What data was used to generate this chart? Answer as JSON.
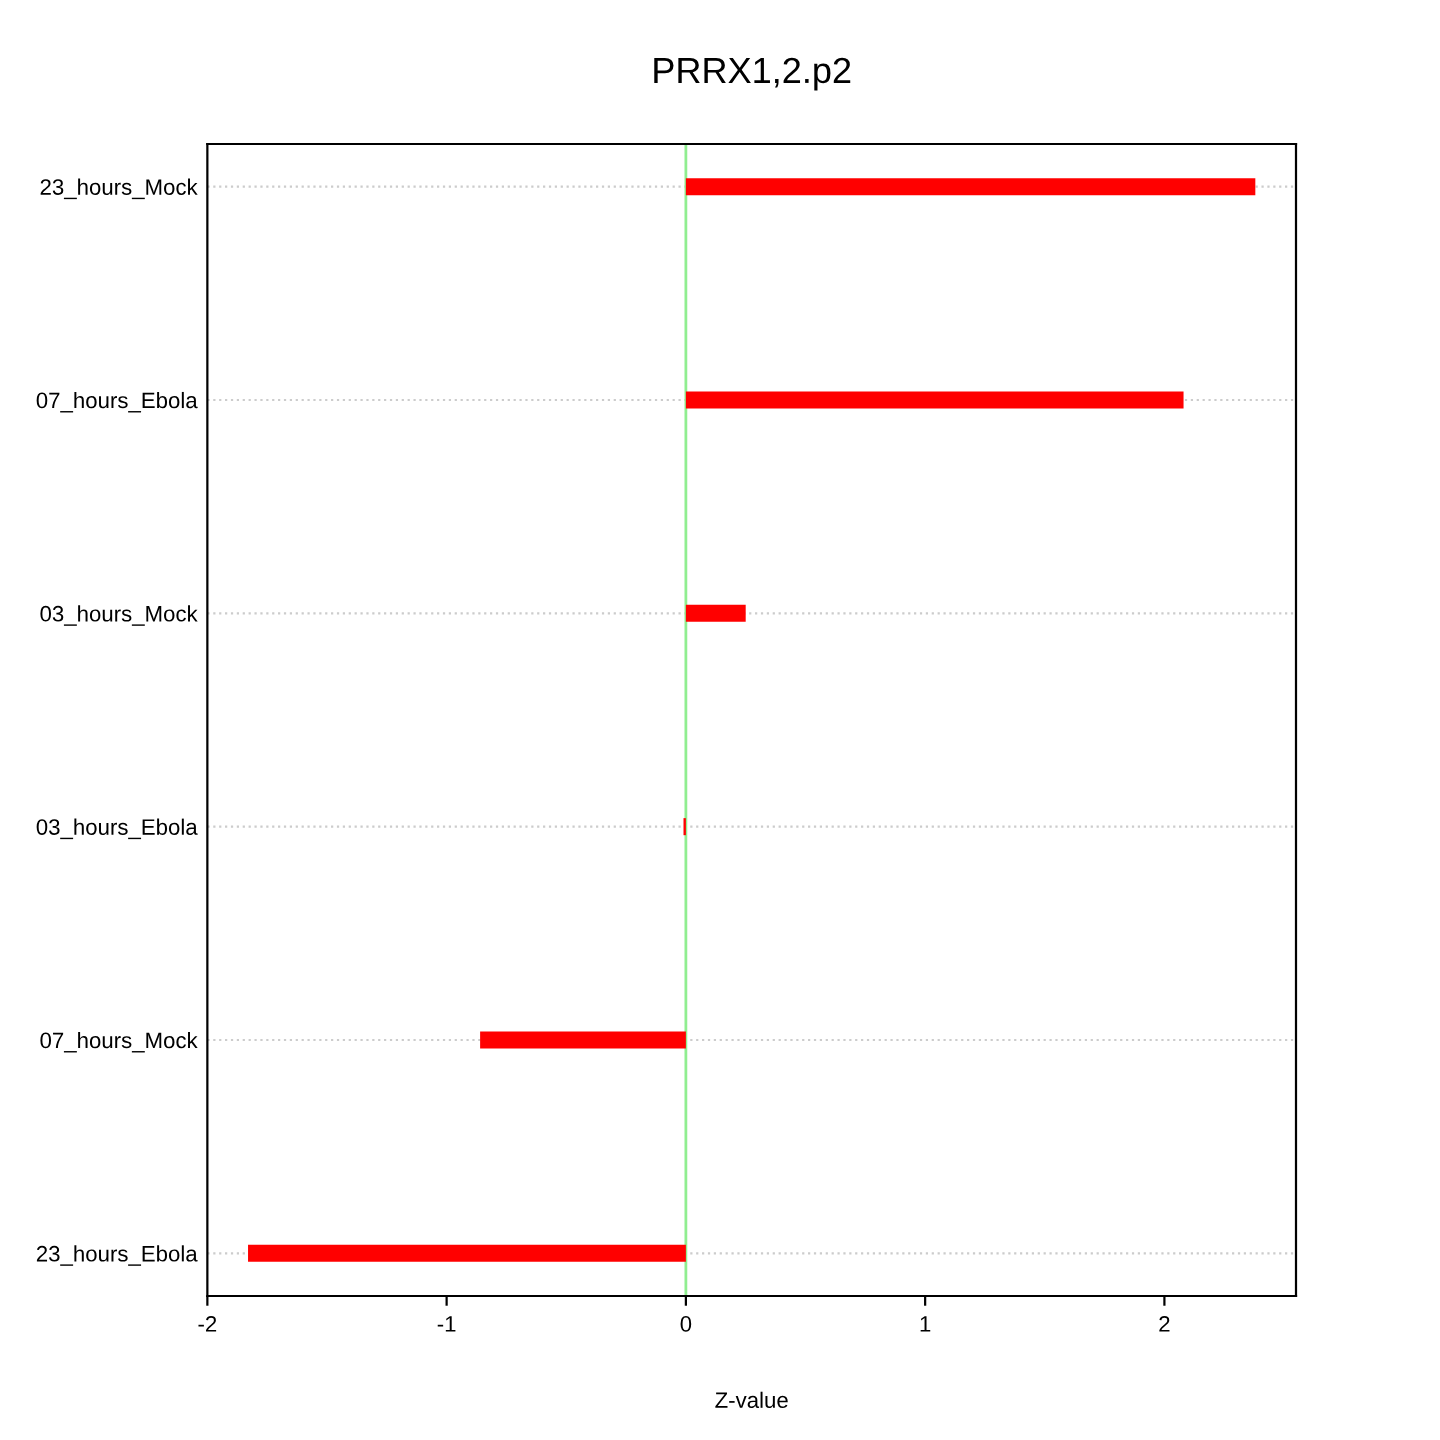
{
  "chart_data": {
    "type": "bar",
    "orientation": "horizontal",
    "title": "PRRX1,2.p2",
    "xlabel": "Z-value",
    "categories": [
      "23_hours_Mock",
      "07_hours_Ebola",
      "03_hours_Mock",
      "03_hours_Ebola",
      "07_hours_Mock",
      "23_hours_Ebola"
    ],
    "values": [
      2.38,
      2.08,
      0.25,
      -0.01,
      -0.86,
      -1.83
    ],
    "color": "#ff0000",
    "xlim": [
      -2.0,
      2.55
    ],
    "xticks": [
      -2,
      -1,
      0,
      1,
      2
    ],
    "ref_lines": [
      {
        "axis": "x",
        "value": 0,
        "color": "#90ee90"
      }
    ],
    "grid": "y"
  }
}
